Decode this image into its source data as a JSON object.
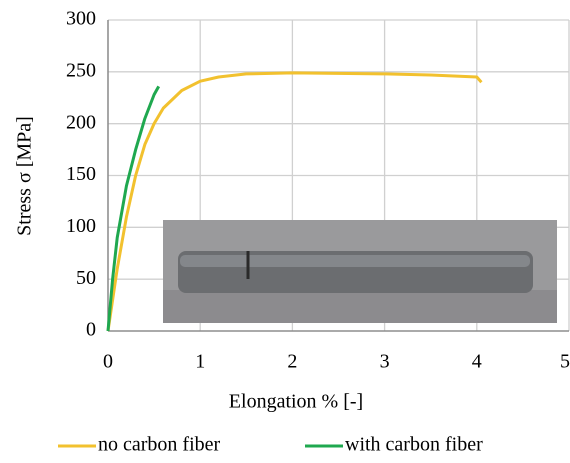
{
  "chart_data": {
    "type": "line",
    "x_label": "Elongation % [-]",
    "y_label": "Stress σ [MPa]",
    "xlim": [
      0,
      5
    ],
    "xticks": [
      0,
      1,
      2,
      3,
      4,
      5
    ],
    "ylim": [
      0,
      300
    ],
    "yticks": [
      0,
      50,
      100,
      150,
      200,
      250,
      300
    ],
    "grid": true,
    "legend": "bottom",
    "series": [
      {
        "name": "no carbon fiber",
        "color": "#f2c12e",
        "x": [
          0,
          0.1,
          0.2,
          0.3,
          0.4,
          0.5,
          0.6,
          0.8,
          1.0,
          1.2,
          1.5,
          2.0,
          3.0,
          3.5,
          4.0,
          4.05
        ],
        "values": [
          0,
          60,
          110,
          150,
          180,
          200,
          215,
          232,
          241,
          245,
          248,
          249,
          248,
          247,
          245,
          240
        ]
      },
      {
        "name": "with carbon fiber",
        "color": "#1fa84f",
        "x": [
          0,
          0.05,
          0.1,
          0.2,
          0.3,
          0.4,
          0.5,
          0.55
        ],
        "values": [
          0,
          50,
          90,
          140,
          175,
          205,
          228,
          236
        ]
      }
    ]
  }
}
